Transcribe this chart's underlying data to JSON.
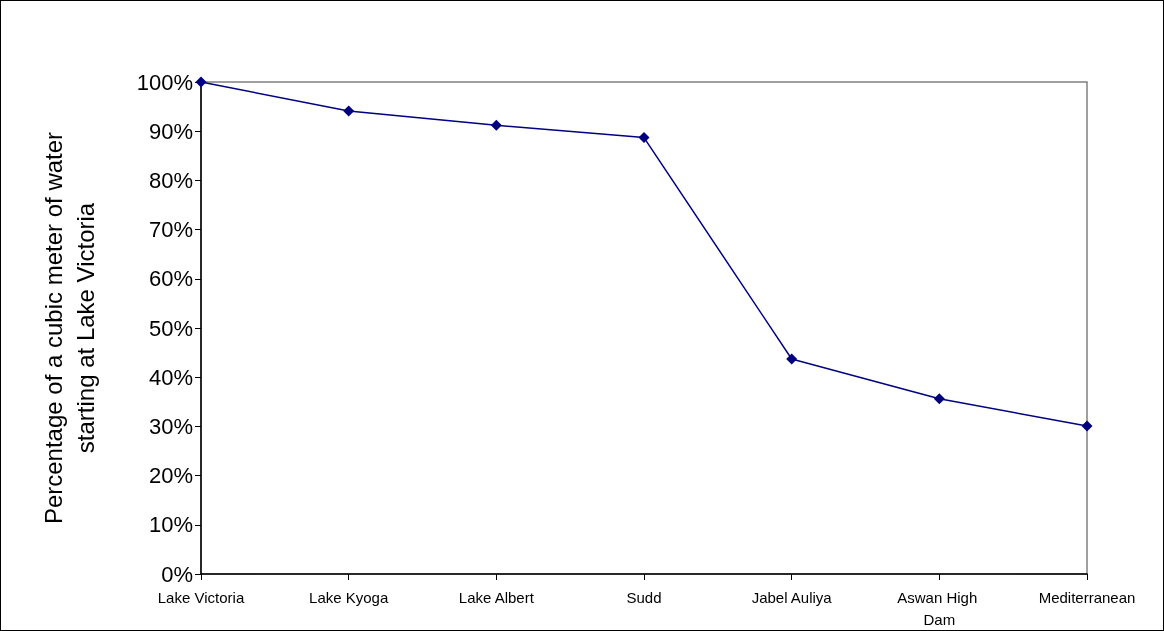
{
  "chart_data": {
    "type": "line",
    "ylabel": "Percentage of a cubic meter of water starting at Lake Victoria",
    "categories": [
      "Lake Victoria",
      "Lake Kyoga",
      "Lake Albert",
      "Sudd",
      "Jabel Auliya",
      "Aswan High Dam",
      "Mediterranean"
    ],
    "series": [
      {
        "color": "#000080",
        "values": [
          100,
          94.1,
          91.2,
          88.7,
          43.7,
          35.6,
          30.1
        ]
      }
    ],
    "ylim": [
      0,
      100
    ],
    "yticks": [
      {
        "value": 0,
        "label": "0%"
      },
      {
        "value": 10,
        "label": "10%"
      },
      {
        "value": 20,
        "label": "20%"
      },
      {
        "value": 30,
        "label": "30%"
      },
      {
        "value": 40,
        "label": "40%"
      },
      {
        "value": 50,
        "label": "50%"
      },
      {
        "value": 60,
        "label": "60%"
      },
      {
        "value": 70,
        "label": "70%"
      },
      {
        "value": 80,
        "label": "80%"
      },
      {
        "value": 90,
        "label": "90%"
      },
      {
        "value": 100,
        "label": "100%"
      }
    ],
    "grid": false,
    "marker": "diamond",
    "line_style": "solid"
  }
}
